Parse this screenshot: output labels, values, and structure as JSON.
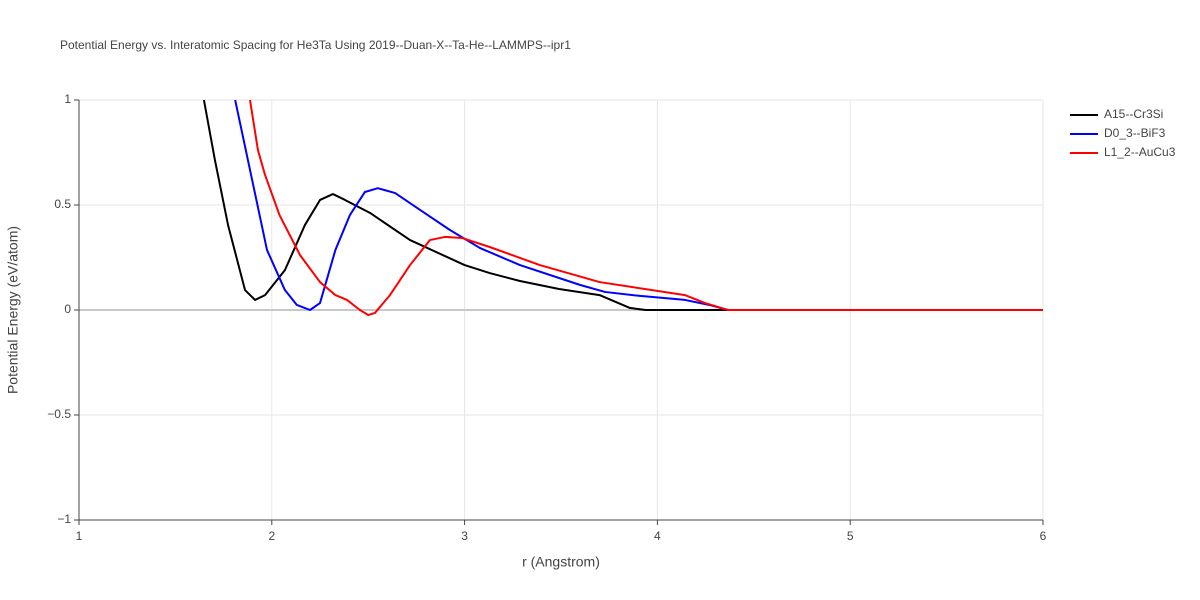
{
  "chart_data": {
    "type": "line",
    "title": "Potential Energy vs. Interatomic Spacing for He3Ta Using 2019--Duan-X--Ta-He--LAMMPS--ipr1",
    "x_label": "r (Angstrom)",
    "y_label": "Potential Energy (eV/atom)",
    "xlim": [
      1,
      6
    ],
    "ylim": [
      -1,
      1
    ],
    "xticks": [
      1,
      2,
      3,
      4,
      5,
      6
    ],
    "yticks": [
      {
        "value": -1,
        "label": "−1"
      },
      {
        "value": -0.5,
        "label": "−0.5"
      },
      0,
      0.5,
      1
    ],
    "grid": true,
    "legend": "right",
    "series": [
      {
        "name": "A15--Cr3Si",
        "color": "#000000",
        "x": [
          1.648,
          1.705,
          1.773,
          1.861,
          1.913,
          1.965,
          2.068,
          2.172,
          2.25,
          2.317,
          2.38,
          2.51,
          2.717,
          3.0,
          3.13,
          3.287,
          3.49,
          3.7,
          3.857,
          3.94,
          6
        ],
        "values": [
          1.0,
          0.714,
          0.405,
          0.095,
          0.048,
          0.071,
          0.19,
          0.405,
          0.524,
          0.552,
          0.524,
          0.462,
          0.333,
          0.214,
          0.176,
          0.138,
          0.1,
          0.071,
          0.01,
          0,
          0
        ]
      },
      {
        "name": "D0_3--BiF3",
        "color": "#0000ff",
        "x": [
          1.81,
          1.887,
          1.975,
          2.068,
          2.13,
          2.198,
          2.25,
          2.33,
          2.405,
          2.483,
          2.55,
          2.64,
          2.77,
          2.924,
          3.08,
          3.287,
          3.6,
          3.728,
          3.91,
          4.143,
          4.27,
          4.366,
          6
        ],
        "values": [
          1.0,
          0.667,
          0.286,
          0.095,
          0.024,
          0.0,
          0.033,
          0.286,
          0.452,
          0.562,
          0.58,
          0.557,
          0.476,
          0.381,
          0.295,
          0.214,
          0.119,
          0.086,
          0.067,
          0.048,
          0.024,
          0,
          0
        ]
      },
      {
        "name": "L1_2--AuCu3",
        "color": "#ff0000",
        "x": [
          1.887,
          1.928,
          1.965,
          2.04,
          2.146,
          2.25,
          2.33,
          2.39,
          2.457,
          2.5,
          2.535,
          2.613,
          2.717,
          2.82,
          2.898,
          2.986,
          3.13,
          3.39,
          3.7,
          4.143,
          4.247,
          4.366,
          6
        ],
        "values": [
          1.0,
          0.762,
          0.643,
          0.452,
          0.262,
          0.133,
          0.071,
          0.048,
          0.0,
          -0.024,
          -0.014,
          0.071,
          0.214,
          0.333,
          0.348,
          0.343,
          0.3,
          0.214,
          0.133,
          0.071,
          0.033,
          0,
          0
        ]
      }
    ]
  }
}
